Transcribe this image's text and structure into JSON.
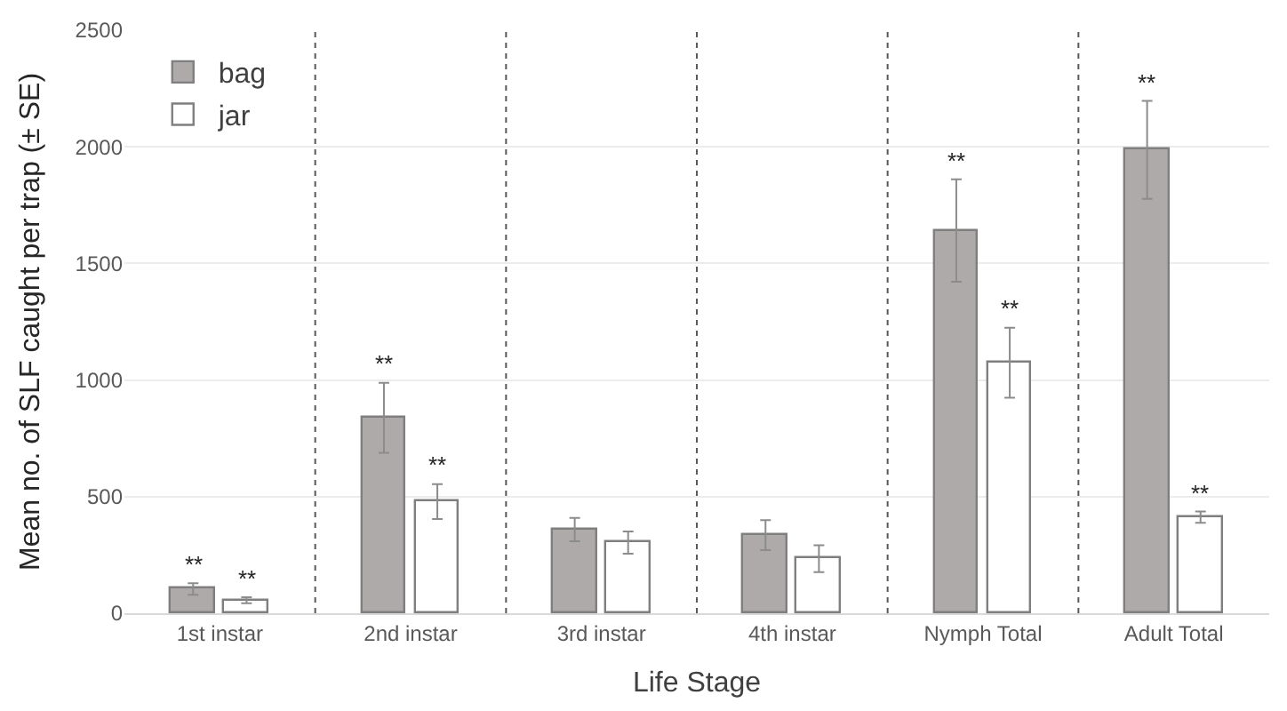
{
  "chart_data": {
    "type": "bar",
    "xlabel": "Life Stage",
    "ylabel": "Mean no. of SLF caught per trap (± SE)",
    "categories": [
      "1st instar",
      "2nd instar",
      "3rd instar",
      "4th instar",
      "Nymph Total",
      "Adult Total"
    ],
    "series": [
      {
        "name": "bag",
        "color": "#aeaaaa",
        "values": [
          104,
          838,
          359,
          335,
          1641,
          1987
        ],
        "errors": [
          25,
          150,
          50,
          64,
          220,
          210
        ],
        "value_labels": [
          "**",
          "**",
          null,
          null,
          "**",
          "**"
        ]
      },
      {
        "name": "jar",
        "color": "#ffffff",
        "values": [
          56,
          479,
          303,
          234,
          1074,
          412
        ],
        "errors": [
          13,
          75,
          48,
          58,
          150,
          24
        ],
        "value_labels": [
          "**",
          "**",
          null,
          null,
          "**",
          "**"
        ]
      }
    ],
    "ylim": [
      0,
      2500
    ],
    "yticks": [
      0,
      500,
      1000,
      1500,
      2000,
      2500
    ],
    "grid": "y",
    "legend": "top left"
  }
}
